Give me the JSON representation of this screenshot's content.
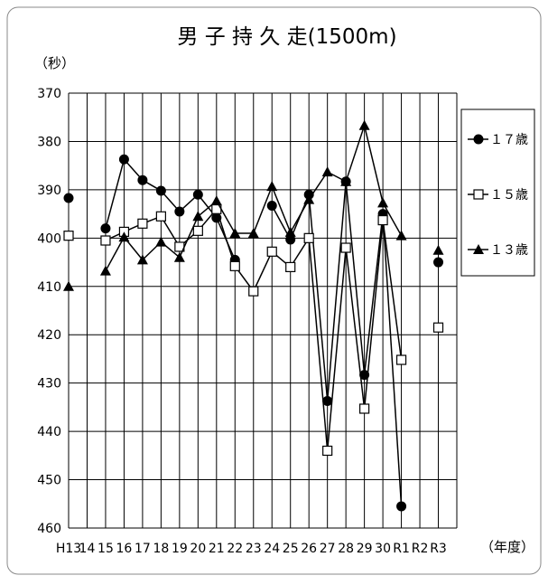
{
  "chart_data": {
    "type": "line",
    "title": "男 子 持 久 走(1500m)",
    "ylabel": "（秒）",
    "xlabel": "（年度）",
    "ylim": [
      370,
      460
    ],
    "y_inverted": true,
    "yticks": [
      370,
      380,
      390,
      400,
      410,
      420,
      430,
      440,
      450,
      460
    ],
    "grid": true,
    "legend_position": "right",
    "categories": [
      "H13",
      "14",
      "15",
      "16",
      "17",
      "18",
      "19",
      "20",
      "21",
      "22",
      "23",
      "24",
      "25",
      "26",
      "27",
      "28",
      "29",
      "30",
      "R1",
      "R2",
      "R3"
    ],
    "series": [
      {
        "name": "１７歳",
        "marker": "circle-filled",
        "color": "#000000",
        "values": [
          391.7,
          null,
          398.0,
          383.7,
          388.0,
          390.2,
          394.5,
          391.0,
          395.8,
          404.5,
          null,
          393.3,
          400.3,
          391.0,
          433.7,
          388.3,
          428.3,
          395.0,
          455.5,
          null,
          405.0
        ]
      },
      {
        "name": "１５歳",
        "marker": "square-open",
        "color": "#000000",
        "values": [
          399.5,
          null,
          400.5,
          398.7,
          397.0,
          395.5,
          401.8,
          398.5,
          394.0,
          405.8,
          411.0,
          402.8,
          406.0,
          400.0,
          444.0,
          402.0,
          435.3,
          396.3,
          425.2,
          null,
          418.5
        ]
      },
      {
        "name": "１３歳",
        "marker": "triangle-filled",
        "color": "#000000",
        "values": [
          410.0,
          null,
          406.8,
          399.8,
          404.5,
          400.8,
          404.0,
          395.5,
          392.3,
          399.0,
          399.0,
          389.3,
          398.8,
          392.0,
          386.3,
          388.3,
          376.7,
          392.7,
          399.5,
          null,
          402.5
        ]
      }
    ]
  }
}
